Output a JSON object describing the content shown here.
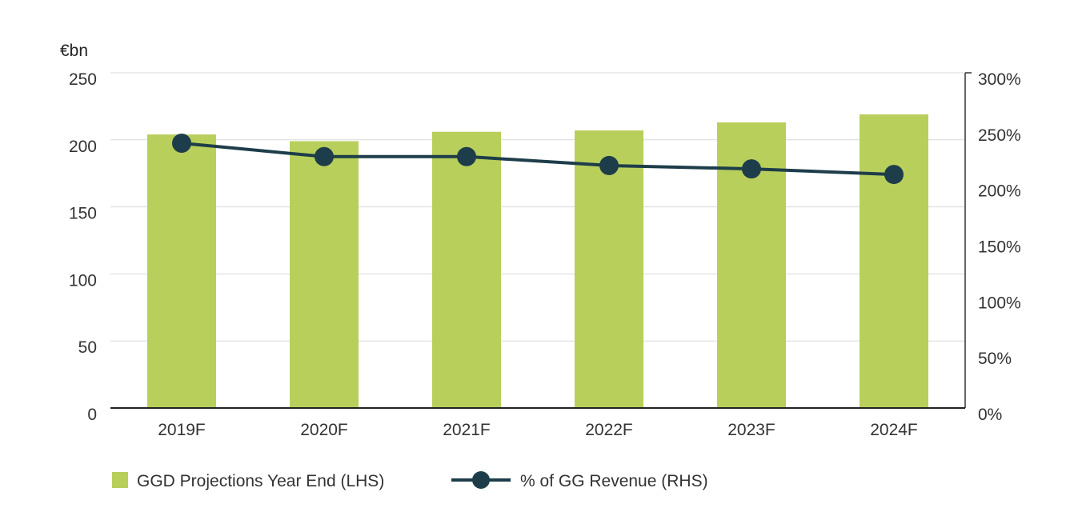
{
  "chart_data": {
    "type": "bar",
    "categories": [
      "2019F",
      "2020F",
      "2021F",
      "2022F",
      "2023F",
      "2024F"
    ],
    "series": [
      {
        "name": "GGD Projections Year End (LHS)",
        "type": "bar",
        "axis": "left",
        "color": "#b8cf5c",
        "values": [
          204,
          199,
          206,
          207,
          213,
          219
        ]
      },
      {
        "name": "% of GG Revenue (RHS)",
        "type": "line",
        "axis": "right",
        "color": "#1e3d4a",
        "values": [
          237,
          225,
          225,
          217,
          214,
          209
        ]
      }
    ],
    "y_left": {
      "unit": "€bn",
      "min": 0,
      "max": 250,
      "ticks": [
        "0",
        "50",
        "100",
        "150",
        "200",
        "250"
      ]
    },
    "y_right": {
      "min": 0,
      "max": 300,
      "ticks": [
        "0%",
        "50%",
        "100%",
        "150%",
        "200%",
        "250%",
        "300%"
      ]
    },
    "grid": true,
    "legend_position": "bottom-left"
  }
}
